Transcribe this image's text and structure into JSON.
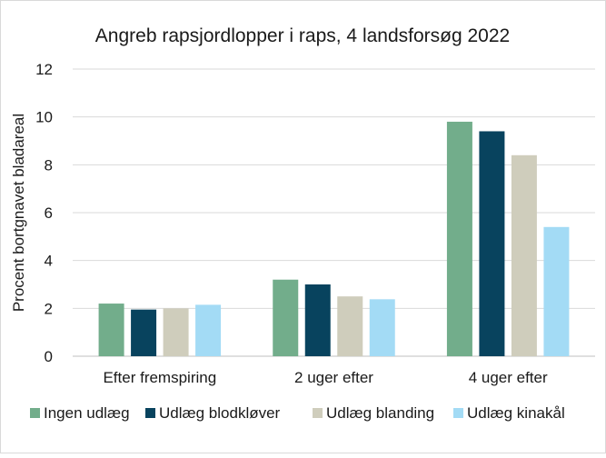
{
  "chart_data": {
    "type": "bar",
    "title": "Angreb rapsjordlopper i raps, 4 landsforsøg 2022",
    "xlabel": "",
    "ylabel": "Procent bortgnavet bladareal",
    "ylim": [
      0,
      12
    ],
    "yticks": [
      0,
      2,
      4,
      6,
      8,
      10,
      12
    ],
    "grid": true,
    "legend_position": "bottom",
    "categories": [
      "Efter fremspiring",
      "2 uger efter",
      "4 uger efter"
    ],
    "series": [
      {
        "name": "Ingen udlæg",
        "color": "#72ad8b",
        "values": [
          2.2,
          3.2,
          9.8
        ]
      },
      {
        "name": "Udlæg blodkløver",
        "color": "#08435e",
        "values": [
          1.95,
          3.0,
          9.4
        ]
      },
      {
        "name": "Udlæg blanding",
        "color": "#cfcdbc",
        "values": [
          2.0,
          2.5,
          8.4
        ]
      },
      {
        "name": "Udlæg kinakål",
        "color": "#a3dbf5",
        "values": [
          2.15,
          2.38,
          5.4
        ]
      }
    ]
  }
}
